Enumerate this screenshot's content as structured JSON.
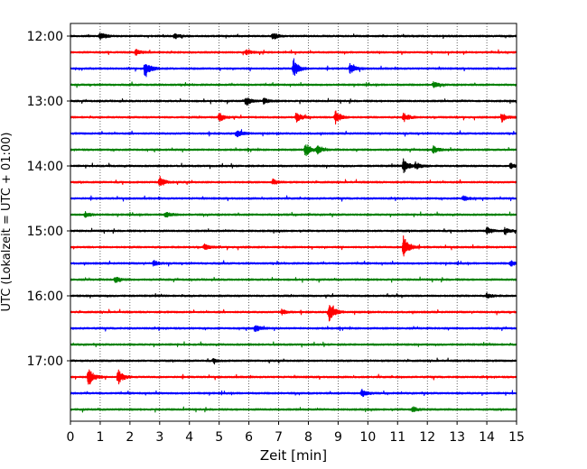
{
  "chart_data": {
    "type": "line",
    "title": "",
    "xlabel": "Zeit  [min]",
    "ylabel": "UTC (Lokalzeit = UTC + 01:00)",
    "xlim": [
      0,
      15
    ],
    "x_ticks": [
      0,
      1,
      2,
      3,
      4,
      5,
      6,
      7,
      8,
      9,
      10,
      11,
      12,
      13,
      14,
      15
    ],
    "y_tick_labels": [
      "12:00",
      "13:00",
      "14:00",
      "15:00",
      "16:00",
      "17:00"
    ],
    "vertical_grid": true,
    "trace_colors": [
      "#000000",
      "#ff0000",
      "#0000ff",
      "#008000"
    ],
    "series": [
      {
        "start": "12:00",
        "color": "#000000",
        "events": [
          {
            "x": 1.0,
            "amp": 4
          },
          {
            "x": 3.5,
            "amp": 3
          },
          {
            "x": 6.8,
            "amp": 4
          }
        ]
      },
      {
        "start": "12:15",
        "color": "#ff0000",
        "events": [
          {
            "x": 2.2,
            "amp": 3
          },
          {
            "x": 5.9,
            "amp": 3
          }
        ]
      },
      {
        "start": "12:30",
        "color": "#0000ff",
        "events": [
          {
            "x": 2.5,
            "amp": 9
          },
          {
            "x": 7.5,
            "amp": 11
          },
          {
            "x": 9.4,
            "amp": 6
          }
        ]
      },
      {
        "start": "12:45",
        "color": "#008000",
        "events": [
          {
            "x": 12.2,
            "amp": 3
          }
        ]
      },
      {
        "start": "13:00",
        "color": "#000000",
        "events": [
          {
            "x": 5.9,
            "amp": 5
          },
          {
            "x": 6.5,
            "amp": 3
          }
        ]
      },
      {
        "start": "13:15",
        "color": "#ff0000",
        "events": [
          {
            "x": 5.0,
            "amp": 5
          },
          {
            "x": 7.6,
            "amp": 5
          },
          {
            "x": 8.9,
            "amp": 8
          },
          {
            "x": 11.2,
            "amp": 5
          },
          {
            "x": 14.5,
            "amp": 5
          }
        ]
      },
      {
        "start": "13:30",
        "color": "#0000ff",
        "events": [
          {
            "x": 5.6,
            "amp": 4
          }
        ]
      },
      {
        "start": "13:45",
        "color": "#008000",
        "events": [
          {
            "x": 7.9,
            "amp": 9
          },
          {
            "x": 8.3,
            "amp": 4
          },
          {
            "x": 12.2,
            "amp": 4
          }
        ]
      },
      {
        "start": "14:00",
        "color": "#000000",
        "events": [
          {
            "x": 11.2,
            "amp": 8
          },
          {
            "x": 11.6,
            "amp": 4
          },
          {
            "x": 14.8,
            "amp": 3
          }
        ]
      },
      {
        "start": "14:15",
        "color": "#ff0000",
        "events": [
          {
            "x": 3.0,
            "amp": 6
          },
          {
            "x": 6.8,
            "amp": 3
          }
        ]
      },
      {
        "start": "14:30",
        "color": "#0000ff",
        "events": [
          {
            "x": 13.2,
            "amp": 3
          }
        ]
      },
      {
        "start": "14:45",
        "color": "#008000",
        "events": [
          {
            "x": 0.5,
            "amp": 3
          },
          {
            "x": 3.2,
            "amp": 3
          }
        ]
      },
      {
        "start": "15:00",
        "color": "#000000",
        "events": [
          {
            "x": 14.0,
            "amp": 4
          },
          {
            "x": 14.6,
            "amp": 3
          }
        ]
      },
      {
        "start": "15:15",
        "color": "#ff0000",
        "events": [
          {
            "x": 11.2,
            "amp": 14
          },
          {
            "x": 4.5,
            "amp": 3
          }
        ]
      },
      {
        "start": "15:30",
        "color": "#0000ff",
        "events": [
          {
            "x": 2.8,
            "amp": 3
          },
          {
            "x": 14.8,
            "amp": 3
          }
        ]
      },
      {
        "start": "15:45",
        "color": "#008000",
        "events": [
          {
            "x": 1.5,
            "amp": 3
          }
        ]
      },
      {
        "start": "16:00",
        "color": "#000000",
        "events": [
          {
            "x": 14.0,
            "amp": 3
          }
        ]
      },
      {
        "start": "16:15",
        "color": "#ff0000",
        "events": [
          {
            "x": 8.7,
            "amp": 11
          },
          {
            "x": 7.1,
            "amp": 3
          }
        ]
      },
      {
        "start": "16:30",
        "color": "#0000ff",
        "events": [
          {
            "x": 6.2,
            "amp": 4
          }
        ]
      },
      {
        "start": "16:45",
        "color": "#008000",
        "events": []
      },
      {
        "start": "17:00",
        "color": "#000000",
        "events": [
          {
            "x": 4.8,
            "amp": 2
          }
        ]
      },
      {
        "start": "17:15",
        "color": "#ff0000",
        "events": [
          {
            "x": 0.6,
            "amp": 12
          },
          {
            "x": 1.6,
            "amp": 9
          }
        ]
      },
      {
        "start": "17:30",
        "color": "#0000ff",
        "events": [
          {
            "x": 9.8,
            "amp": 4
          }
        ]
      },
      {
        "start": "17:45",
        "color": "#008000",
        "events": [
          {
            "x": 11.5,
            "amp": 3
          }
        ]
      }
    ]
  }
}
